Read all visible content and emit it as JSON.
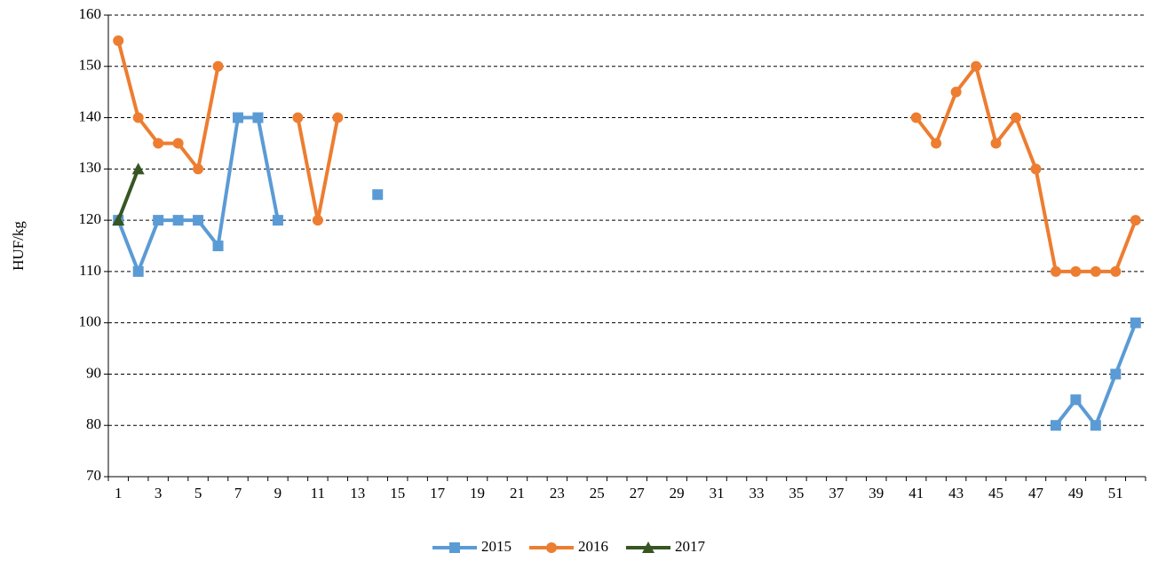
{
  "chart_data": {
    "type": "line",
    "y_label": "HUF/kg",
    "categories": [
      "1",
      null,
      "3",
      null,
      "5",
      null,
      "7",
      null,
      "9",
      null,
      "11",
      null,
      "13",
      null,
      "15",
      null,
      "17",
      null,
      "19",
      null,
      "21",
      null,
      "23",
      null,
      "25",
      null,
      "27",
      null,
      "29",
      null,
      "31",
      null,
      "33",
      null,
      "35",
      null,
      "37",
      null,
      "39",
      null,
      "41",
      null,
      "43",
      null,
      "45",
      null,
      "47",
      null,
      "49",
      null,
      "51",
      null
    ],
    "series": [
      {
        "name": "2015",
        "color": "#5b9bd5",
        "marker": "square",
        "values": [
          120,
          110,
          120,
          120,
          120,
          115,
          140,
          140,
          120,
          null,
          null,
          null,
          null,
          125,
          null,
          null,
          null,
          null,
          null,
          null,
          null,
          null,
          null,
          null,
          null,
          null,
          null,
          null,
          null,
          null,
          null,
          null,
          null,
          null,
          null,
          null,
          null,
          null,
          null,
          null,
          null,
          null,
          null,
          null,
          null,
          null,
          null,
          80,
          85,
          80,
          90,
          100
        ]
      },
      {
        "name": "2016",
        "color": "#ed7d31",
        "marker": "circle",
        "values": [
          155,
          140,
          135,
          135,
          130,
          150,
          null,
          null,
          null,
          140,
          120,
          140,
          null,
          null,
          null,
          null,
          null,
          null,
          null,
          null,
          null,
          null,
          null,
          null,
          null,
          null,
          null,
          null,
          null,
          null,
          null,
          null,
          null,
          null,
          null,
          null,
          null,
          null,
          null,
          null,
          140,
          135,
          145,
          150,
          135,
          140,
          130,
          110,
          110,
          110,
          110,
          120
        ]
      },
      {
        "name": "2017",
        "color": "#375623",
        "marker": "triangle",
        "values": [
          120,
          130,
          null,
          null,
          null,
          null,
          null,
          null,
          null,
          null,
          null,
          null,
          null,
          null,
          null,
          null,
          null,
          null,
          null,
          null,
          null,
          null,
          null,
          null,
          null,
          null,
          null,
          null,
          null,
          null,
          null,
          null,
          null,
          null,
          null,
          null,
          null,
          null,
          null,
          null,
          null,
          null,
          null,
          null,
          null,
          null,
          null,
          null,
          null,
          null,
          null,
          null
        ]
      }
    ],
    "ylim": [
      70,
      160
    ],
    "yticks": [
      70,
      80,
      90,
      100,
      110,
      120,
      130,
      140,
      150,
      160
    ],
    "grid": true,
    "legend": "bottom"
  }
}
